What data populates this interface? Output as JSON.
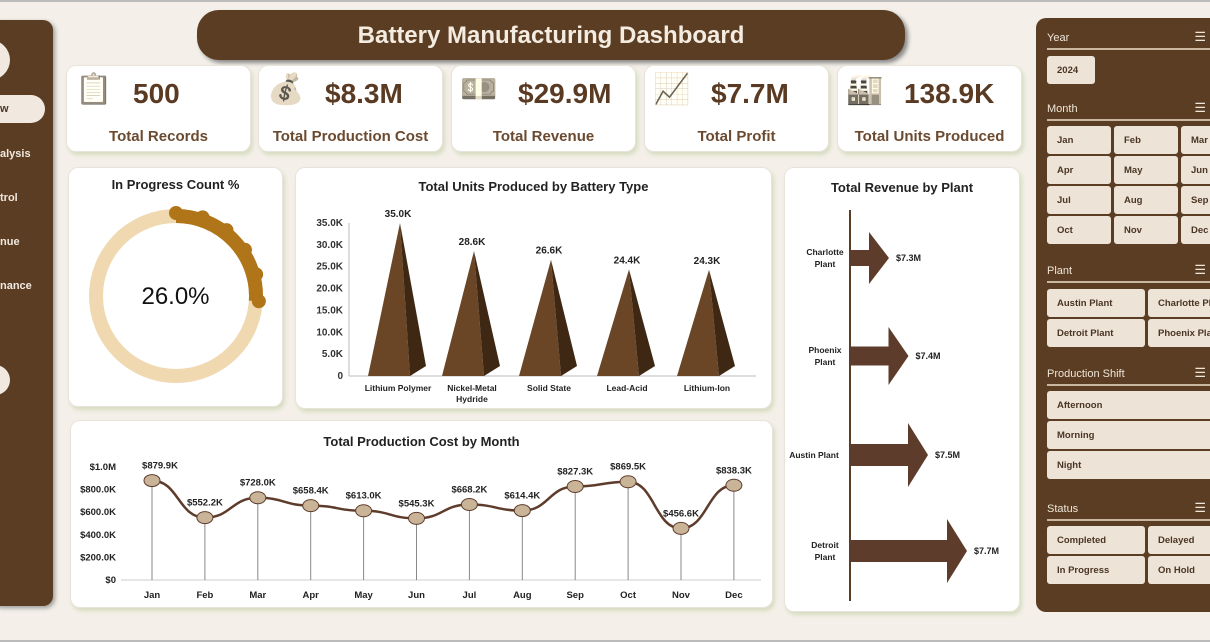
{
  "header": {
    "title": "Battery Manufacturing Dashboard"
  },
  "sidebar": {
    "items": [
      "w",
      "alysis",
      "trol",
      "nue",
      "nance"
    ]
  },
  "kpis": [
    {
      "value": "500",
      "label": "Total Records",
      "icon": "clipboard-calculator-icon"
    },
    {
      "value": "$8.3M",
      "label": "Total Production Cost",
      "icon": "money-bag-hand-icon"
    },
    {
      "value": "$29.9M",
      "label": "Total Revenue",
      "icon": "cash-coins-icon"
    },
    {
      "value": "$7.7M",
      "label": "Total Profit",
      "icon": "growth-chart-icon"
    },
    {
      "value": "138.9K",
      "label": "Total Units Produced",
      "icon": "factory-icon"
    }
  ],
  "colors": {
    "brown": "#5b3d23",
    "accent": "#b07419",
    "track": "#f0d9b0"
  },
  "chart_data": [
    {
      "type": "pie",
      "title": "In Progress Count %",
      "value": 26.0,
      "label": "26.0%"
    },
    {
      "type": "bar",
      "title": "Total Units Produced by Battery Type",
      "categories": [
        "Lithium Polymer",
        "Nickel-Metal Hydride",
        "Solid State",
        "Lead-Acid",
        "Lithium-Ion"
      ],
      "values": [
        35.0,
        28.6,
        26.6,
        24.4,
        24.3
      ],
      "data_labels": [
        "35.0K",
        "28.6K",
        "26.6K",
        "24.4K",
        "24.3K"
      ],
      "yticks": [
        "0",
        "5.0K",
        "10.0K",
        "15.0K",
        "20.0K",
        "25.0K",
        "30.0K",
        "35.0K"
      ],
      "ylim": [
        0,
        35
      ]
    },
    {
      "type": "bar",
      "orientation": "horizontal",
      "title": "Total Revenue  by Plant",
      "categories": [
        "Charlotte Plant",
        "Phoenix Plant",
        "Austin Plant",
        "Detroit Plant"
      ],
      "values": [
        7.3,
        7.4,
        7.5,
        7.7
      ],
      "data_labels": [
        "$7.3M",
        "$7.4M",
        "$7.5M",
        "$7.7M"
      ]
    },
    {
      "type": "line",
      "title": "Total Production Cost  by Month",
      "categories": [
        "Jan",
        "Feb",
        "Mar",
        "Apr",
        "May",
        "Jun",
        "Jul",
        "Aug",
        "Sep",
        "Oct",
        "Nov",
        "Dec"
      ],
      "values": [
        879.9,
        552.2,
        728.0,
        658.4,
        613.0,
        545.3,
        668.2,
        614.4,
        827.3,
        869.5,
        456.6,
        838.3
      ],
      "data_labels": [
        "$879.9K",
        "$552.2K",
        "$728.0K",
        "$658.4K",
        "$613.0K",
        "$545.3K",
        "$668.2K",
        "$614.4K",
        "$827.3K",
        "$869.5K",
        "$456.6K",
        "$838.3K"
      ],
      "yticks": [
        "$0",
        "$200.0K",
        "$400.0K",
        "$600.0K",
        "$800.0K",
        "$1.0M"
      ],
      "ylim": [
        0,
        1000
      ]
    }
  ],
  "filters": {
    "year": {
      "label": "Year",
      "options": [
        "2024"
      ]
    },
    "month": {
      "label": "Month",
      "options": [
        "Jan",
        "Feb",
        "Mar",
        "Apr",
        "May",
        "Jun",
        "Jul",
        "Aug",
        "Sep",
        "Oct",
        "Nov",
        "Dec"
      ]
    },
    "plant": {
      "label": "Plant",
      "options": [
        "Austin Plant",
        "Charlotte Pl",
        "Detroit Plant",
        "Phoenix Pla"
      ]
    },
    "shift": {
      "label": "Production Shift",
      "options": [
        "Afternoon",
        "Morning",
        "Night"
      ]
    },
    "status": {
      "label": "Status",
      "options": [
        "Completed",
        "Delayed",
        "In Progress",
        "On Hold"
      ]
    }
  }
}
